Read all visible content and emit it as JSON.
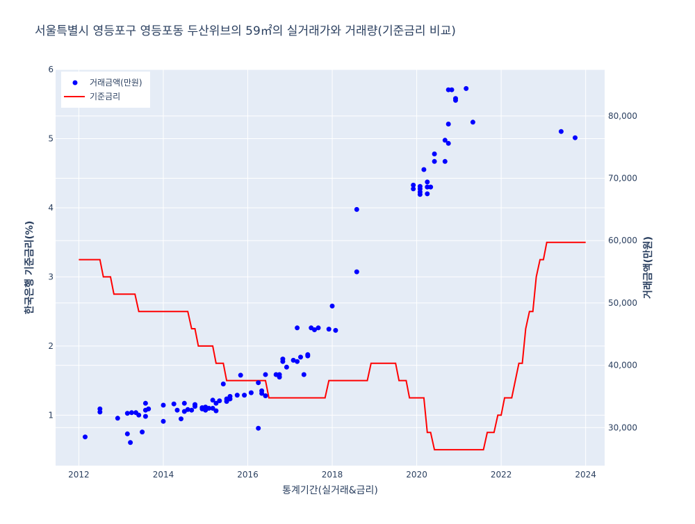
{
  "chart_data": {
    "type": "scatter+line",
    "title": "서울특별시 영등포구 영등포동 두산위브의 59㎡의 실거래가와 거래량(기준금리 비교)",
    "xlabel": "통계기간(실거래&금리)",
    "ylabel_left": "한국은행 기준금리(%)",
    "ylabel_right": "거래금액(만원)",
    "x_range": [
      2011.45,
      2024.45
    ],
    "y_left_range": [
      0.27,
      6
    ],
    "y_right_range": [
      23900,
      87450
    ],
    "x_ticks": [
      2012,
      2014,
      2016,
      2018,
      2020,
      2022,
      2024
    ],
    "y_left_ticks": [
      1,
      2,
      3,
      4,
      5,
      6
    ],
    "y_right_ticks": [
      30000,
      40000,
      50000,
      60000,
      70000,
      80000
    ],
    "y_right_tick_labels": [
      "30,000",
      "40,000",
      "50,000",
      "60,000",
      "70,000",
      "80,000"
    ],
    "legend": {
      "position": "top-left",
      "items": [
        "거래금액(만원)",
        "기준금리"
      ]
    },
    "colors": {
      "trade": "#0000ff",
      "rate": "#ff0000",
      "plot_bg": "#e5ecf6",
      "grid": "#ffffff"
    },
    "series": [
      {
        "name": "거래금액(만원)",
        "axis": "right",
        "kind": "scatter",
        "points": [
          [
            2012.15,
            28500
          ],
          [
            2012.5,
            33000
          ],
          [
            2012.5,
            32500
          ],
          [
            2012.92,
            31500
          ],
          [
            2013.15,
            32300
          ],
          [
            2013.15,
            29000
          ],
          [
            2013.25,
            32400
          ],
          [
            2013.22,
            27600
          ],
          [
            2013.35,
            32400
          ],
          [
            2013.42,
            32000
          ],
          [
            2013.5,
            29300
          ],
          [
            2013.58,
            33900
          ],
          [
            2013.58,
            32800
          ],
          [
            2013.58,
            31800
          ],
          [
            2013.65,
            33000
          ],
          [
            2014.0,
            33600
          ],
          [
            2014.0,
            31000
          ],
          [
            2014.25,
            33800
          ],
          [
            2014.33,
            32800
          ],
          [
            2014.42,
            31400
          ],
          [
            2014.5,
            33900
          ],
          [
            2014.5,
            32600
          ],
          [
            2014.58,
            32900
          ],
          [
            2014.67,
            32800
          ],
          [
            2014.75,
            33700
          ],
          [
            2014.75,
            33400
          ],
          [
            2014.92,
            33200
          ],
          [
            2014.92,
            33000
          ],
          [
            2015.0,
            33300
          ],
          [
            2015.0,
            32800
          ],
          [
            2015.08,
            33100
          ],
          [
            2015.17,
            33100
          ],
          [
            2015.17,
            34400
          ],
          [
            2015.25,
            33900
          ],
          [
            2015.25,
            32700
          ],
          [
            2015.33,
            34300
          ],
          [
            2015.42,
            37000
          ],
          [
            2015.5,
            34600
          ],
          [
            2015.5,
            34200
          ],
          [
            2015.58,
            35000
          ],
          [
            2015.58,
            34600
          ],
          [
            2015.75,
            35200
          ],
          [
            2015.83,
            38400
          ],
          [
            2015.92,
            35200
          ],
          [
            2016.08,
            35600
          ],
          [
            2016.25,
            37200
          ],
          [
            2016.25,
            29900
          ],
          [
            2016.33,
            35900
          ],
          [
            2016.33,
            35500
          ],
          [
            2016.42,
            38500
          ],
          [
            2016.42,
            35100
          ],
          [
            2016.67,
            38500
          ],
          [
            2016.75,
            38500
          ],
          [
            2016.75,
            38100
          ],
          [
            2016.83,
            41000
          ],
          [
            2016.83,
            40600
          ],
          [
            2016.92,
            39700
          ],
          [
            2017.08,
            40800
          ],
          [
            2017.17,
            46000
          ],
          [
            2017.17,
            40600
          ],
          [
            2017.25,
            41300
          ],
          [
            2017.33,
            38500
          ],
          [
            2017.42,
            41500
          ],
          [
            2017.42,
            41700
          ],
          [
            2017.5,
            46000
          ],
          [
            2017.58,
            45700
          ],
          [
            2017.67,
            46000
          ],
          [
            2017.92,
            45800
          ],
          [
            2018.0,
            49500
          ],
          [
            2018.08,
            45600
          ],
          [
            2018.58,
            65000
          ],
          [
            2018.58,
            55000
          ],
          [
            2019.92,
            68900
          ],
          [
            2019.92,
            68300
          ],
          [
            2020.08,
            68700
          ],
          [
            2020.08,
            68300
          ],
          [
            2020.08,
            67800
          ],
          [
            2020.08,
            67400
          ],
          [
            2020.17,
            71400
          ],
          [
            2020.25,
            69400
          ],
          [
            2020.25,
            68600
          ],
          [
            2020.25,
            67500
          ],
          [
            2020.33,
            68600
          ],
          [
            2020.42,
            72700
          ],
          [
            2020.42,
            73900
          ],
          [
            2020.67,
            72700
          ],
          [
            2020.67,
            76100
          ],
          [
            2020.75,
            75600
          ],
          [
            2020.75,
            78700
          ],
          [
            2020.75,
            84200
          ],
          [
            2020.83,
            84200
          ],
          [
            2020.92,
            82800
          ],
          [
            2020.92,
            82500
          ],
          [
            2021.17,
            84400
          ],
          [
            2021.33,
            79000
          ],
          [
            2023.42,
            77500
          ],
          [
            2023.75,
            76500
          ]
        ]
      },
      {
        "name": "기준금리",
        "axis": "left",
        "kind": "step-line",
        "points": [
          [
            2012.0,
            3.25
          ],
          [
            2012.5,
            3.25
          ],
          [
            2012.58,
            3.0
          ],
          [
            2012.75,
            3.0
          ],
          [
            2012.83,
            2.75
          ],
          [
            2013.33,
            2.75
          ],
          [
            2013.42,
            2.5
          ],
          [
            2014.58,
            2.5
          ],
          [
            2014.67,
            2.25
          ],
          [
            2014.75,
            2.25
          ],
          [
            2014.83,
            2.0
          ],
          [
            2015.17,
            2.0
          ],
          [
            2015.25,
            1.75
          ],
          [
            2015.42,
            1.75
          ],
          [
            2015.5,
            1.5
          ],
          [
            2016.42,
            1.5
          ],
          [
            2016.5,
            1.25
          ],
          [
            2017.83,
            1.25
          ],
          [
            2017.92,
            1.5
          ],
          [
            2018.83,
            1.5
          ],
          [
            2018.92,
            1.75
          ],
          [
            2019.5,
            1.75
          ],
          [
            2019.58,
            1.5
          ],
          [
            2019.75,
            1.5
          ],
          [
            2019.83,
            1.25
          ],
          [
            2020.17,
            1.25
          ],
          [
            2020.25,
            0.75
          ],
          [
            2020.33,
            0.75
          ],
          [
            2020.42,
            0.5
          ],
          [
            2021.58,
            0.5
          ],
          [
            2021.67,
            0.75
          ],
          [
            2021.83,
            0.75
          ],
          [
            2021.92,
            1.0
          ],
          [
            2022.0,
            1.0
          ],
          [
            2022.08,
            1.25
          ],
          [
            2022.25,
            1.25
          ],
          [
            2022.42,
            1.75
          ],
          [
            2022.5,
            1.75
          ],
          [
            2022.58,
            2.25
          ],
          [
            2022.67,
            2.5
          ],
          [
            2022.75,
            2.5
          ],
          [
            2022.83,
            3.0
          ],
          [
            2022.92,
            3.25
          ],
          [
            2023.0,
            3.25
          ],
          [
            2023.08,
            3.5
          ],
          [
            2024.0,
            3.5
          ]
        ]
      }
    ]
  }
}
